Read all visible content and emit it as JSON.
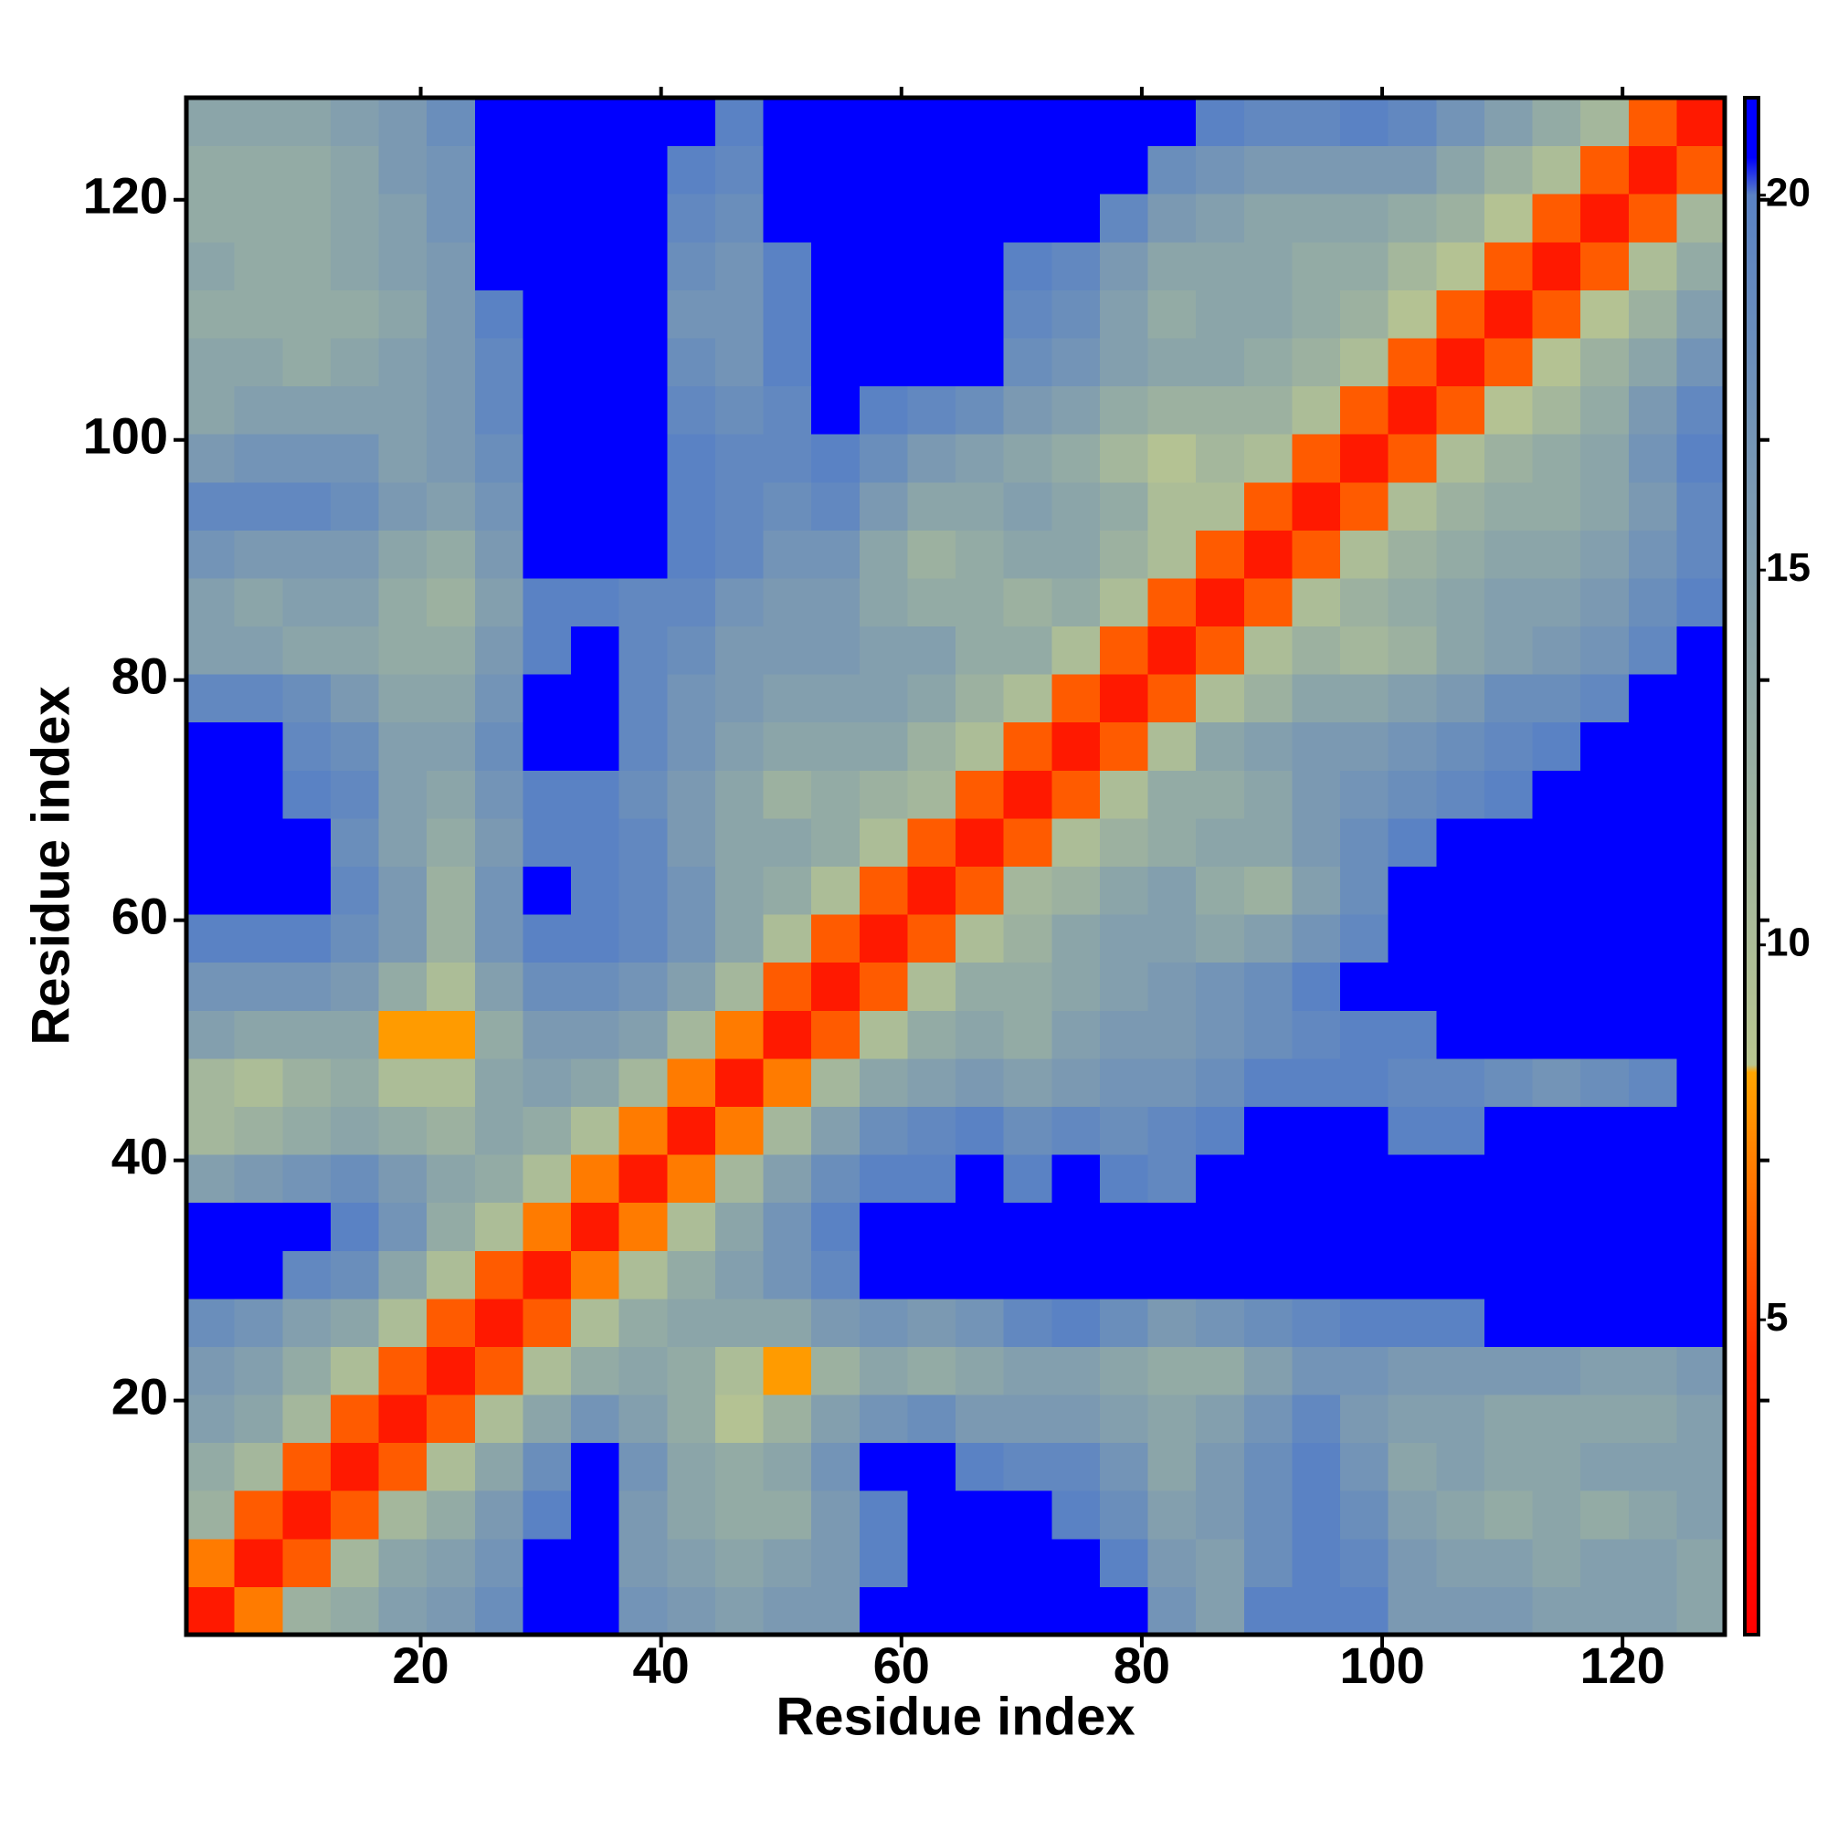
{
  "chart_data": {
    "type": "heatmap",
    "xlabel": "Residue index",
    "ylabel": "Residue index",
    "xlim": [
      0.5,
      128.5
    ],
    "ylim": [
      0.5,
      128.5
    ],
    "xticks": [
      20,
      40,
      60,
      80,
      100,
      120
    ],
    "yticks": [
      20,
      40,
      60,
      80,
      100,
      120
    ],
    "x_bins": [
      0.5,
      4.5,
      8.5,
      12.5,
      16.5,
      20.5,
      24.5,
      28.5,
      32.5,
      36.5,
      40.5,
      44.5,
      48.5,
      52.5,
      56.5,
      60.5,
      64.5,
      68.5,
      72.5,
      76.5,
      80.5,
      84.5,
      88.5,
      92.5,
      96.5,
      100.5,
      104.5,
      108.5,
      112.5,
      116.5,
      120.5,
      124.5,
      128.5
    ],
    "y_bins": [
      0.5,
      4.5,
      8.5,
      12.5,
      16.5,
      20.5,
      24.5,
      28.5,
      32.5,
      36.5,
      40.5,
      44.5,
      48.5,
      52.5,
      56.5,
      60.5,
      64.5,
      68.5,
      72.5,
      76.5,
      80.5,
      84.5,
      88.5,
      92.5,
      96.5,
      100.5,
      104.5,
      108.5,
      112.5,
      116.5,
      120.5,
      124.5,
      128.5
    ],
    "z": [
      [
        3,
        7,
        12,
        13,
        15,
        16,
        18,
        22,
        22,
        17,
        16,
        15,
        16,
        16,
        22,
        22,
        22,
        22,
        22,
        22,
        17,
        15,
        20,
        20,
        20,
        16,
        16,
        16,
        15,
        15,
        15,
        14
      ],
      [
        7,
        3,
        6,
        11,
        14,
        15,
        17,
        22,
        22,
        16,
        15,
        14,
        15,
        16,
        20,
        22,
        22,
        22,
        22,
        20,
        16,
        15,
        18,
        20,
        19,
        16,
        15,
        15,
        14,
        15,
        15,
        14
      ],
      [
        12,
        6,
        3,
        6,
        11,
        13,
        16,
        20,
        22,
        16,
        14,
        13,
        13,
        16,
        20,
        22,
        22,
        21,
        20,
        18,
        15,
        16,
        18,
        20,
        18,
        15,
        14,
        13,
        14,
        13,
        14,
        15
      ],
      [
        13,
        11,
        6,
        3,
        6,
        10,
        14,
        18,
        21,
        17,
        14,
        13,
        14,
        17,
        21,
        22,
        20,
        19,
        19,
        17,
        14,
        16,
        18,
        20,
        17,
        14,
        15,
        14,
        14,
        15,
        15,
        15
      ],
      [
        15,
        14,
        11,
        6,
        3,
        6,
        10,
        14,
        17,
        15,
        13,
        9,
        12,
        15,
        17,
        18,
        16,
        16,
        16,
        15,
        14,
        15,
        17,
        19,
        16,
        15,
        15,
        14,
        14,
        14,
        14,
        15
      ],
      [
        16,
        15,
        13,
        10,
        6,
        3,
        6,
        10,
        13,
        14,
        13,
        10,
        8,
        12,
        14,
        13,
        14,
        15,
        15,
        14,
        13,
        13,
        15,
        17,
        17,
        16,
        16,
        16,
        16,
        15,
        15,
        16
      ],
      [
        18,
        17,
        15,
        14,
        10,
        6,
        3,
        6,
        10,
        13,
        14,
        14,
        14,
        16,
        17,
        16,
        17,
        19,
        20,
        18,
        16,
        17,
        18,
        19,
        20,
        20,
        20,
        21,
        21,
        21,
        21,
        21
      ],
      [
        21,
        21,
        19,
        18,
        14,
        10,
        6,
        3,
        7,
        10,
        13,
        15,
        17,
        19,
        21,
        21,
        21,
        22,
        22,
        22,
        21,
        21,
        22,
        22,
        22,
        22,
        22,
        22,
        22,
        22,
        22,
        22
      ],
      [
        22,
        22,
        21,
        20,
        17,
        13,
        10,
        7,
        3,
        7,
        10,
        14,
        17,
        20,
        21,
        21,
        22,
        22,
        22,
        21,
        21,
        21,
        22,
        22,
        22,
        22,
        22,
        22,
        22,
        22,
        22,
        22
      ],
      [
        15,
        16,
        17,
        18,
        16,
        14,
        13,
        10,
        7,
        3,
        7,
        11,
        15,
        18,
        20,
        20,
        21,
        20,
        21,
        20,
        19,
        21,
        22,
        22,
        22,
        21,
        22,
        22,
        22,
        22,
        22,
        22
      ],
      [
        11,
        12,
        13,
        14,
        13,
        12,
        14,
        13,
        10,
        7,
        3,
        7,
        11,
        15,
        18,
        19,
        20,
        18,
        19,
        18,
        19,
        20,
        21,
        21,
        21,
        20,
        20,
        21,
        21,
        21,
        21,
        22
      ],
      [
        11,
        10,
        12,
        13,
        10,
        10,
        14,
        15,
        14,
        11,
        7,
        3,
        7,
        11,
        14,
        15,
        16,
        15,
        16,
        17,
        17,
        18,
        20,
        20,
        20,
        19,
        19,
        18,
        17,
        18,
        19,
        21
      ],
      [
        15,
        14,
        14,
        14,
        8,
        8,
        13,
        16,
        16,
        15,
        11,
        7,
        3,
        6,
        10,
        13,
        14,
        13,
        15,
        16,
        16,
        17,
        18,
        19,
        20,
        20,
        21,
        21,
        21,
        21,
        22,
        22
      ],
      [
        17,
        17,
        17,
        16,
        13,
        10,
        15,
        18,
        18,
        17,
        15,
        11,
        6,
        3,
        6,
        10,
        13,
        13,
        14,
        15,
        16,
        17,
        18,
        20,
        21,
        22,
        22,
        22,
        22,
        22,
        22,
        22
      ],
      [
        20,
        20,
        20,
        18,
        16,
        12,
        17,
        20,
        20,
        19,
        17,
        14,
        10,
        6,
        3,
        6,
        10,
        12,
        14,
        15,
        15,
        14,
        15,
        17,
        19,
        21,
        22,
        22,
        22,
        22,
        22,
        22
      ],
      [
        22,
        22,
        21,
        19,
        16,
        12,
        17,
        21,
        20,
        19,
        17,
        14,
        13,
        10,
        6,
        3,
        6,
        11,
        12,
        14,
        15,
        13,
        12,
        15,
        18,
        21,
        22,
        22,
        22,
        22,
        22,
        22
      ],
      [
        22,
        22,
        21,
        18,
        15,
        13,
        16,
        20,
        20,
        19,
        16,
        14,
        14,
        13,
        10,
        6,
        3,
        6,
        10,
        12,
        13,
        14,
        14,
        16,
        18,
        20,
        21,
        21,
        22,
        22,
        22,
        22
      ],
      [
        21,
        22,
        20,
        19,
        15,
        14,
        17,
        20,
        20,
        18,
        16,
        14,
        12,
        13,
        12,
        11,
        6,
        3,
        6,
        10,
        13,
        13,
        14,
        16,
        17,
        18,
        19,
        20,
        21,
        22,
        22,
        22
      ],
      [
        21,
        21,
        19,
        18,
        15,
        15,
        18,
        21,
        21,
        19,
        17,
        15,
        14,
        14,
        14,
        12,
        10,
        6,
        3,
        6,
        10,
        14,
        15,
        16,
        16,
        17,
        18,
        19,
        20,
        21,
        22,
        22
      ],
      [
        19,
        19,
        18,
        16,
        14,
        14,
        17,
        21,
        21,
        19,
        17,
        16,
        15,
        15,
        15,
        14,
        12,
        10,
        6,
        3,
        6,
        10,
        12,
        14,
        14,
        15,
        16,
        18,
        18,
        19,
        21,
        22
      ],
      [
        15,
        15,
        14,
        14,
        13,
        13,
        16,
        20,
        21,
        19,
        18,
        16,
        16,
        16,
        15,
        15,
        13,
        13,
        10,
        6,
        3,
        6,
        10,
        12,
        11,
        12,
        14,
        15,
        16,
        17,
        19,
        21
      ],
      [
        15,
        14,
        15,
        15,
        13,
        12,
        15,
        20,
        20,
        19,
        19,
        17,
        16,
        16,
        14,
        13,
        13,
        12,
        13,
        10,
        6,
        3,
        6,
        10,
        12,
        13,
        14,
        15,
        15,
        16,
        18,
        20
      ],
      [
        17,
        16,
        16,
        16,
        14,
        13,
        16,
        21,
        21,
        21,
        20,
        19,
        17,
        17,
        14,
        12,
        13,
        14,
        14,
        12,
        10,
        6,
        3,
        6,
        10,
        12,
        13,
        14,
        14,
        15,
        17,
        19
      ],
      [
        19,
        19,
        19,
        18,
        16,
        15,
        17,
        21,
        21,
        21,
        20,
        19,
        18,
        19,
        16,
        14,
        14,
        15,
        14,
        13,
        10,
        10,
        6,
        3,
        6,
        10,
        12,
        13,
        13,
        14,
        16,
        19
      ],
      [
        16,
        17,
        17,
        17,
        15,
        16,
        18,
        21,
        22,
        21,
        20,
        19,
        19,
        20,
        18,
        16,
        15,
        14,
        13,
        11,
        9,
        11,
        10,
        6,
        3,
        6,
        10,
        12,
        13,
        14,
        17,
        20
      ],
      [
        14,
        15,
        15,
        15,
        15,
        16,
        19,
        22,
        22,
        21,
        19,
        18,
        19,
        21,
        20,
        19,
        18,
        16,
        15,
        13,
        12,
        12,
        12,
        10,
        6,
        3,
        6,
        9,
        11,
        13,
        16,
        19
      ],
      [
        14,
        14,
        13,
        14,
        15,
        16,
        19,
        22,
        22,
        21,
        18,
        17,
        20,
        22,
        22,
        22,
        21,
        18,
        17,
        15,
        14,
        14,
        13,
        12,
        10,
        6,
        3,
        6,
        9,
        12,
        14,
        17
      ],
      [
        13,
        13,
        13,
        13,
        14,
        16,
        20,
        22,
        22,
        21,
        17,
        17,
        20,
        22,
        22,
        22,
        21,
        19,
        18,
        15,
        13,
        14,
        14,
        13,
        12,
        9,
        6,
        3,
        6,
        9,
        12,
        15
      ],
      [
        14,
        13,
        13,
        14,
        15,
        16,
        21,
        22,
        22,
        21,
        18,
        17,
        20,
        22,
        22,
        22,
        22,
        20,
        19,
        16,
        14,
        14,
        14,
        13,
        13,
        11,
        9,
        6,
        3,
        6,
        10,
        13
      ],
      [
        13,
        13,
        13,
        14,
        15,
        17,
        21,
        22,
        22,
        21,
        19,
        18,
        21,
        22,
        22,
        22,
        22,
        21,
        21,
        19,
        16,
        15,
        14,
        14,
        14,
        13,
        12,
        9,
        6,
        3,
        6,
        11
      ],
      [
        13,
        13,
        13,
        14,
        16,
        17,
        21,
        22,
        22,
        22,
        20,
        19,
        21,
        22,
        22,
        22,
        22,
        22,
        22,
        21,
        18,
        17,
        16,
        16,
        16,
        16,
        14,
        12,
        10,
        6,
        3,
        6
      ],
      [
        14,
        14,
        14,
        15,
        16,
        18,
        21,
        22,
        22,
        22,
        21,
        20,
        21,
        22,
        22,
        22,
        22,
        22,
        22,
        22,
        21,
        20,
        19,
        19,
        20,
        19,
        17,
        15,
        13,
        11,
        6,
        3
      ]
    ],
    "clim": [
      0.8,
      21.3
    ],
    "cticks": [
      5,
      10,
      15,
      20
    ],
    "colorscale": [
      {
        "value": 0.8,
        "color": "#ff0000"
      },
      {
        "value": 4.5,
        "color": "#ff2a00"
      },
      {
        "value": 8.3,
        "color": "#ffa500"
      },
      {
        "value": 8.4,
        "color": "#b9c690"
      },
      {
        "value": 20,
        "color": "#5a82c4"
      },
      {
        "value": 20.5,
        "color": "#0000ff"
      },
      {
        "value": 21.3,
        "color": "#0000ff"
      }
    ]
  }
}
